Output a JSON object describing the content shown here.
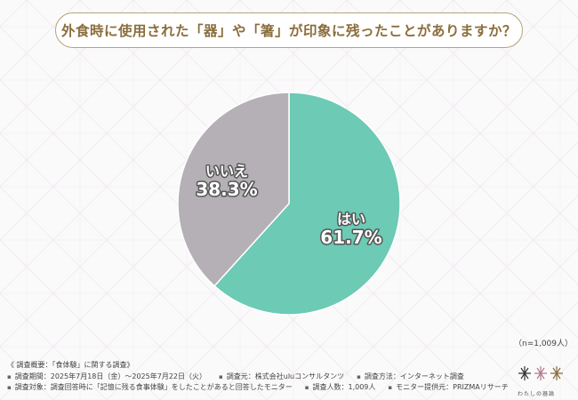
{
  "title": "外食時に使用された「器」や「箸」が印象に残ったことがありますか？",
  "chart_data": {
    "type": "pie",
    "title": "外食時に使用された「器」や「箸」が印象に残ったことがありますか？",
    "slices": [
      {
        "label": "はい",
        "value": 61.7,
        "display": "61.7%",
        "color": "#6ccab5"
      },
      {
        "label": "いいえ",
        "value": 38.3,
        "display": "38.3%",
        "color": "#b5b0b5"
      }
    ]
  },
  "sample_size": "（n=1,009人）",
  "footer": {
    "overview": "《 調査概要：「食体験」に関する調査》",
    "period": "調査期間：2025年7月18日（金）〜2025年7月22日（火）",
    "organizer": "調査元：株式会社uluコンサルタンツ",
    "method": "調査方法：インターネット調査",
    "target": "調査対象：調査回答時に「記憶に残る食事体験」をしたことがあると回答したモニター",
    "respondents": "調査人数：1,009人",
    "provider": "モニター提供元：PRIZMAリサーチ"
  },
  "logo": {
    "text": "わたしの器論"
  }
}
